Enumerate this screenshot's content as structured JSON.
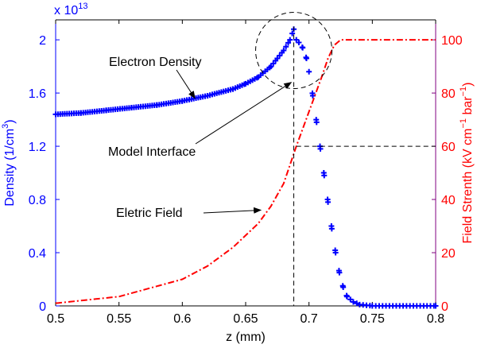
{
  "chart_data": {
    "type": "line",
    "xlabel": "z (mm)",
    "xlim": [
      0.5,
      0.8
    ],
    "x_ticks": [
      "0.5",
      "0.55",
      "0.6",
      "0.65",
      "0.7",
      "0.75",
      "0.8"
    ],
    "ylabel_left": "Density (1/cm^3)",
    "ylabel_left_parts": {
      "prefix": "Density (1/cm",
      "sup": "3",
      "suffix": ")"
    },
    "y_left_exponent": {
      "base": "x 10",
      "power": "13"
    },
    "ylim_left": [
      0,
      2.15
    ],
    "y_left_ticks": [
      "0",
      "0.4",
      "0.8",
      "1.2",
      "1.6",
      "2"
    ],
    "ylabel_right": "Field Strenth (kV cm^-1 bar^-1)",
    "ylabel_right_parts": {
      "prefix": "Field Strenth (kV cm",
      "sup1": "−1",
      "mid": " bar",
      "sup2": "−1",
      "suffix": ")"
    },
    "ylim_right": [
      0,
      107.5
    ],
    "y_right_ticks": [
      "0",
      "20",
      "40",
      "60",
      "80",
      "100"
    ],
    "grid": false,
    "series": [
      {
        "axis": "left",
        "marker": "+",
        "color": "#0000ff",
        "x": [
          0.5,
          0.52,
          0.54,
          0.56,
          0.58,
          0.6,
          0.62,
          0.64,
          0.65,
          0.66,
          0.67,
          0.675,
          0.68,
          0.685,
          0.688,
          0.69,
          0.692,
          0.695,
          0.698,
          0.7,
          0.703,
          0.706,
          0.709,
          0.712,
          0.715,
          0.718,
          0.721,
          0.724,
          0.727,
          0.73,
          0.735,
          0.74,
          0.75,
          0.8
        ],
        "y": [
          1.44,
          1.45,
          1.47,
          1.49,
          1.51,
          1.54,
          1.58,
          1.63,
          1.67,
          1.72,
          1.8,
          1.86,
          1.92,
          2.0,
          2.08,
          2.0,
          1.98,
          1.94,
          1.86,
          1.76,
          1.58,
          1.38,
          1.18,
          0.98,
          0.78,
          0.58,
          0.4,
          0.25,
          0.14,
          0.07,
          0.03,
          0.01,
          0.0,
          0.0
        ]
      },
      {
        "axis": "right",
        "linestyle": "dash-dot",
        "color": "#ff0000",
        "x": [
          0.5,
          0.55,
          0.6,
          0.62,
          0.64,
          0.66,
          0.67,
          0.68,
          0.69,
          0.7,
          0.71,
          0.715,
          0.72,
          0.725,
          0.73,
          0.8
        ],
        "y": [
          1,
          3.5,
          10,
          15,
          22,
          31,
          37.5,
          46,
          60,
          73,
          86,
          93,
          98,
          100,
          100,
          100
        ]
      }
    ],
    "reference_lines": [
      {
        "orientation": "vertical",
        "x": 0.688,
        "y_left_range": [
          0,
          2.1
        ]
      },
      {
        "orientation": "horizontal",
        "y_right": 60,
        "x_range": [
          0.69,
          0.8
        ]
      }
    ],
    "annotations": [
      {
        "text": "Electron Density",
        "points_to": {
          "x": 0.61,
          "y_left": 1.56
        }
      },
      {
        "text": "Model Interface",
        "points_to": {
          "x": 0.686,
          "y_left": 1.68
        }
      },
      {
        "text": "Eletric Field",
        "points_to": {
          "x": 0.662,
          "y_right": 36
        }
      }
    ],
    "highlight": {
      "shape": "dashed-circle",
      "center": {
        "x": 0.688,
        "y_left": 1.92
      }
    }
  }
}
